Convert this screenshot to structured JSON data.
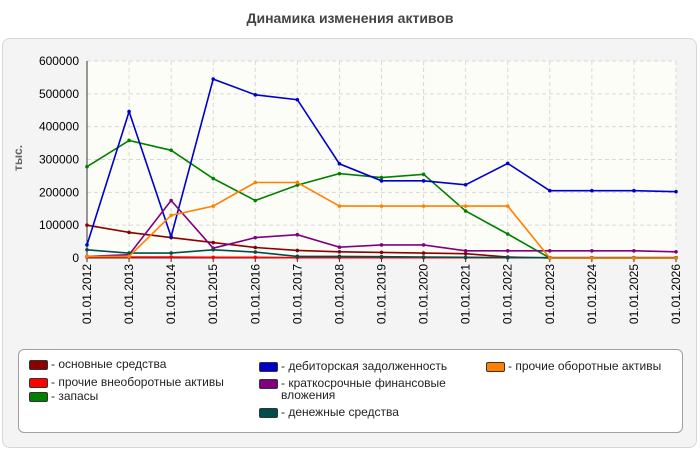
{
  "title": "Динамика изменения активов",
  "chart_data": {
    "type": "line",
    "title": "Динамика изменения активов",
    "ylabel": "тыс.",
    "xlabel": "",
    "ylim": [
      0,
      600000
    ],
    "yticks": [
      "0",
      "100000",
      "200000",
      "300000",
      "400000",
      "500000",
      "600000"
    ],
    "grid": true,
    "legend_position": "bottom",
    "x": [
      "01.01.2012",
      "01.01.2013",
      "01.01.2014",
      "01.01.2015",
      "01.01.2016",
      "01.01.2017",
      "01.01.2018",
      "01.01.2019",
      "01.01.2020",
      "01.01.2021",
      "01.01.2022",
      "01.01.2023",
      "01.01.2024",
      "01.01.2025",
      "01.01.2026"
    ],
    "series": [
      {
        "name": "- основные средства",
        "color": "#8b0000",
        "values": [
          100000,
          78000,
          62000,
          47000,
          32000,
          23000,
          19000,
          17000,
          15000,
          13000,
          3000,
          0,
          0,
          0,
          0
        ]
      },
      {
        "name": "- прочие внеоборотные активы",
        "color": "#ff0000",
        "values": [
          3000,
          3000,
          3000,
          2000,
          2000,
          1000,
          1000,
          1000,
          1000,
          1000,
          1000,
          1000,
          1000,
          1000,
          1000
        ]
      },
      {
        "name": "- запасы",
        "color": "#008000",
        "values": [
          278000,
          358000,
          328000,
          242000,
          175000,
          222000,
          257000,
          245000,
          255000,
          143000,
          73000,
          0,
          0,
          0,
          0
        ]
      },
      {
        "name": "- дебиторская задолженность",
        "color": "#0000cd",
        "values": [
          40000,
          446000,
          65000,
          545000,
          497000,
          482000,
          287000,
          235000,
          235000,
          223000,
          288000,
          205000,
          205000,
          205000,
          202000
        ]
      },
      {
        "name": "- краткосрочные финансовые вложения",
        "color": "#800080",
        "values": [
          5000,
          10000,
          175000,
          30000,
          62000,
          71000,
          33000,
          40000,
          40000,
          22000,
          22000,
          22000,
          22000,
          22000,
          19000
        ]
      },
      {
        "name": "- денежные средства",
        "color": "#004d4d",
        "values": [
          25000,
          15000,
          15000,
          25000,
          18000,
          5000,
          5000,
          4000,
          3000,
          2000,
          1000,
          1000,
          1000,
          1000,
          1000
        ]
      },
      {
        "name": "- прочие оборотные активы",
        "color": "#ff8000",
        "values": [
          5000,
          5000,
          130000,
          158000,
          230000,
          230000,
          158000,
          158000,
          158000,
          158000,
          158000,
          0,
          0,
          0,
          0
        ]
      }
    ]
  }
}
